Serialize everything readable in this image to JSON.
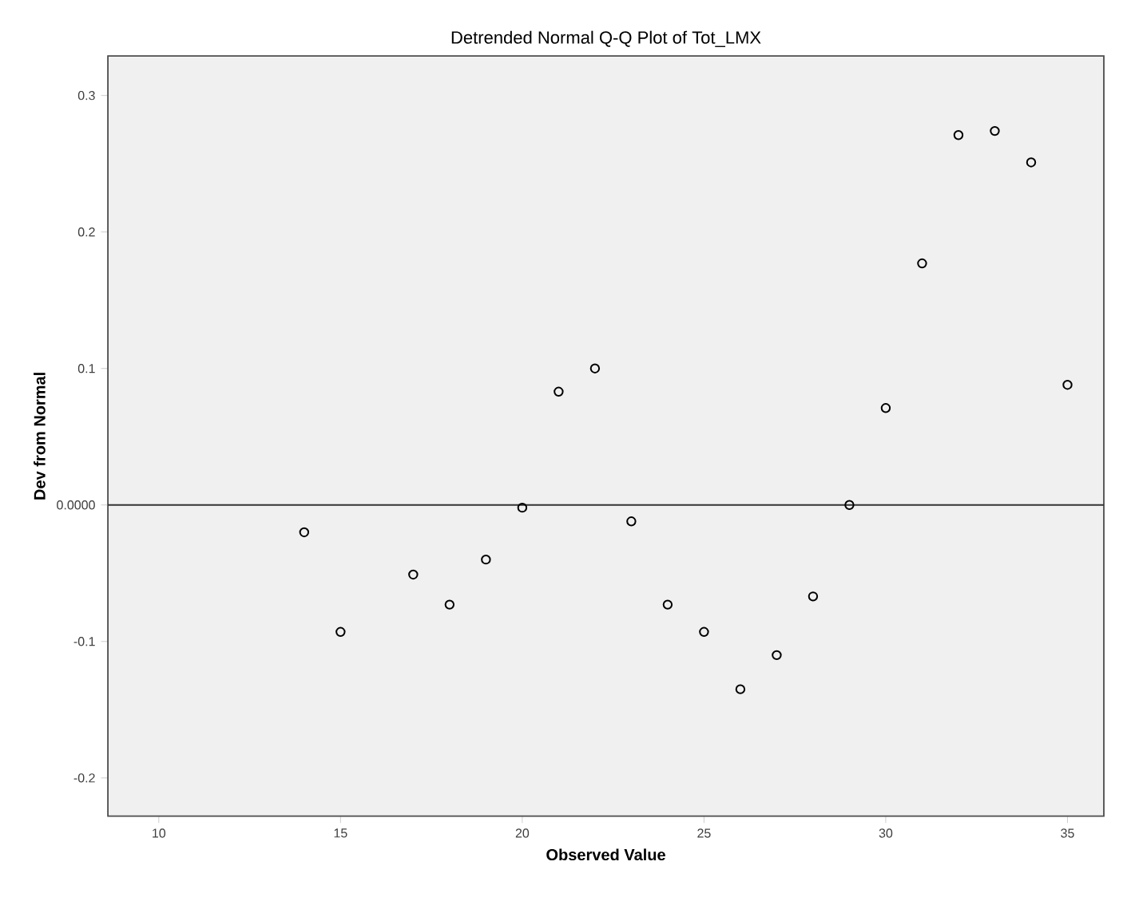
{
  "chart_data": {
    "type": "scatter",
    "title": "Detrended Normal Q-Q Plot of Tot_LMX",
    "xlabel": "Observed Value",
    "ylabel": "Dev from Normal",
    "x": [
      14,
      15,
      17,
      18,
      19,
      20,
      21,
      22,
      23,
      24,
      25,
      26,
      27,
      28,
      29,
      30,
      31,
      32,
      33,
      34,
      35
    ],
    "values": [
      -0.02,
      -0.093,
      -0.051,
      -0.073,
      -0.04,
      -0.002,
      0.083,
      0.1,
      -0.012,
      -0.073,
      -0.093,
      -0.135,
      -0.11,
      -0.067,
      0.0,
      0.071,
      0.177,
      0.271,
      0.274,
      0.251,
      0.088
    ],
    "color": "#000000",
    "marker": "circle",
    "xlim": [
      8.6,
      36
    ],
    "ylim": [
      -0.228,
      0.329
    ],
    "xticks": [
      10,
      15,
      20,
      25,
      30,
      35
    ],
    "yticks": [
      -0.2,
      -0.1,
      {
        "value": 0,
        "label": "0.0000"
      },
      0.1,
      0.2,
      0.3
    ],
    "ref_lines": [
      {
        "axis": "y",
        "value": 0,
        "color": "#333333"
      }
    ],
    "grid": false,
    "legend": false
  }
}
